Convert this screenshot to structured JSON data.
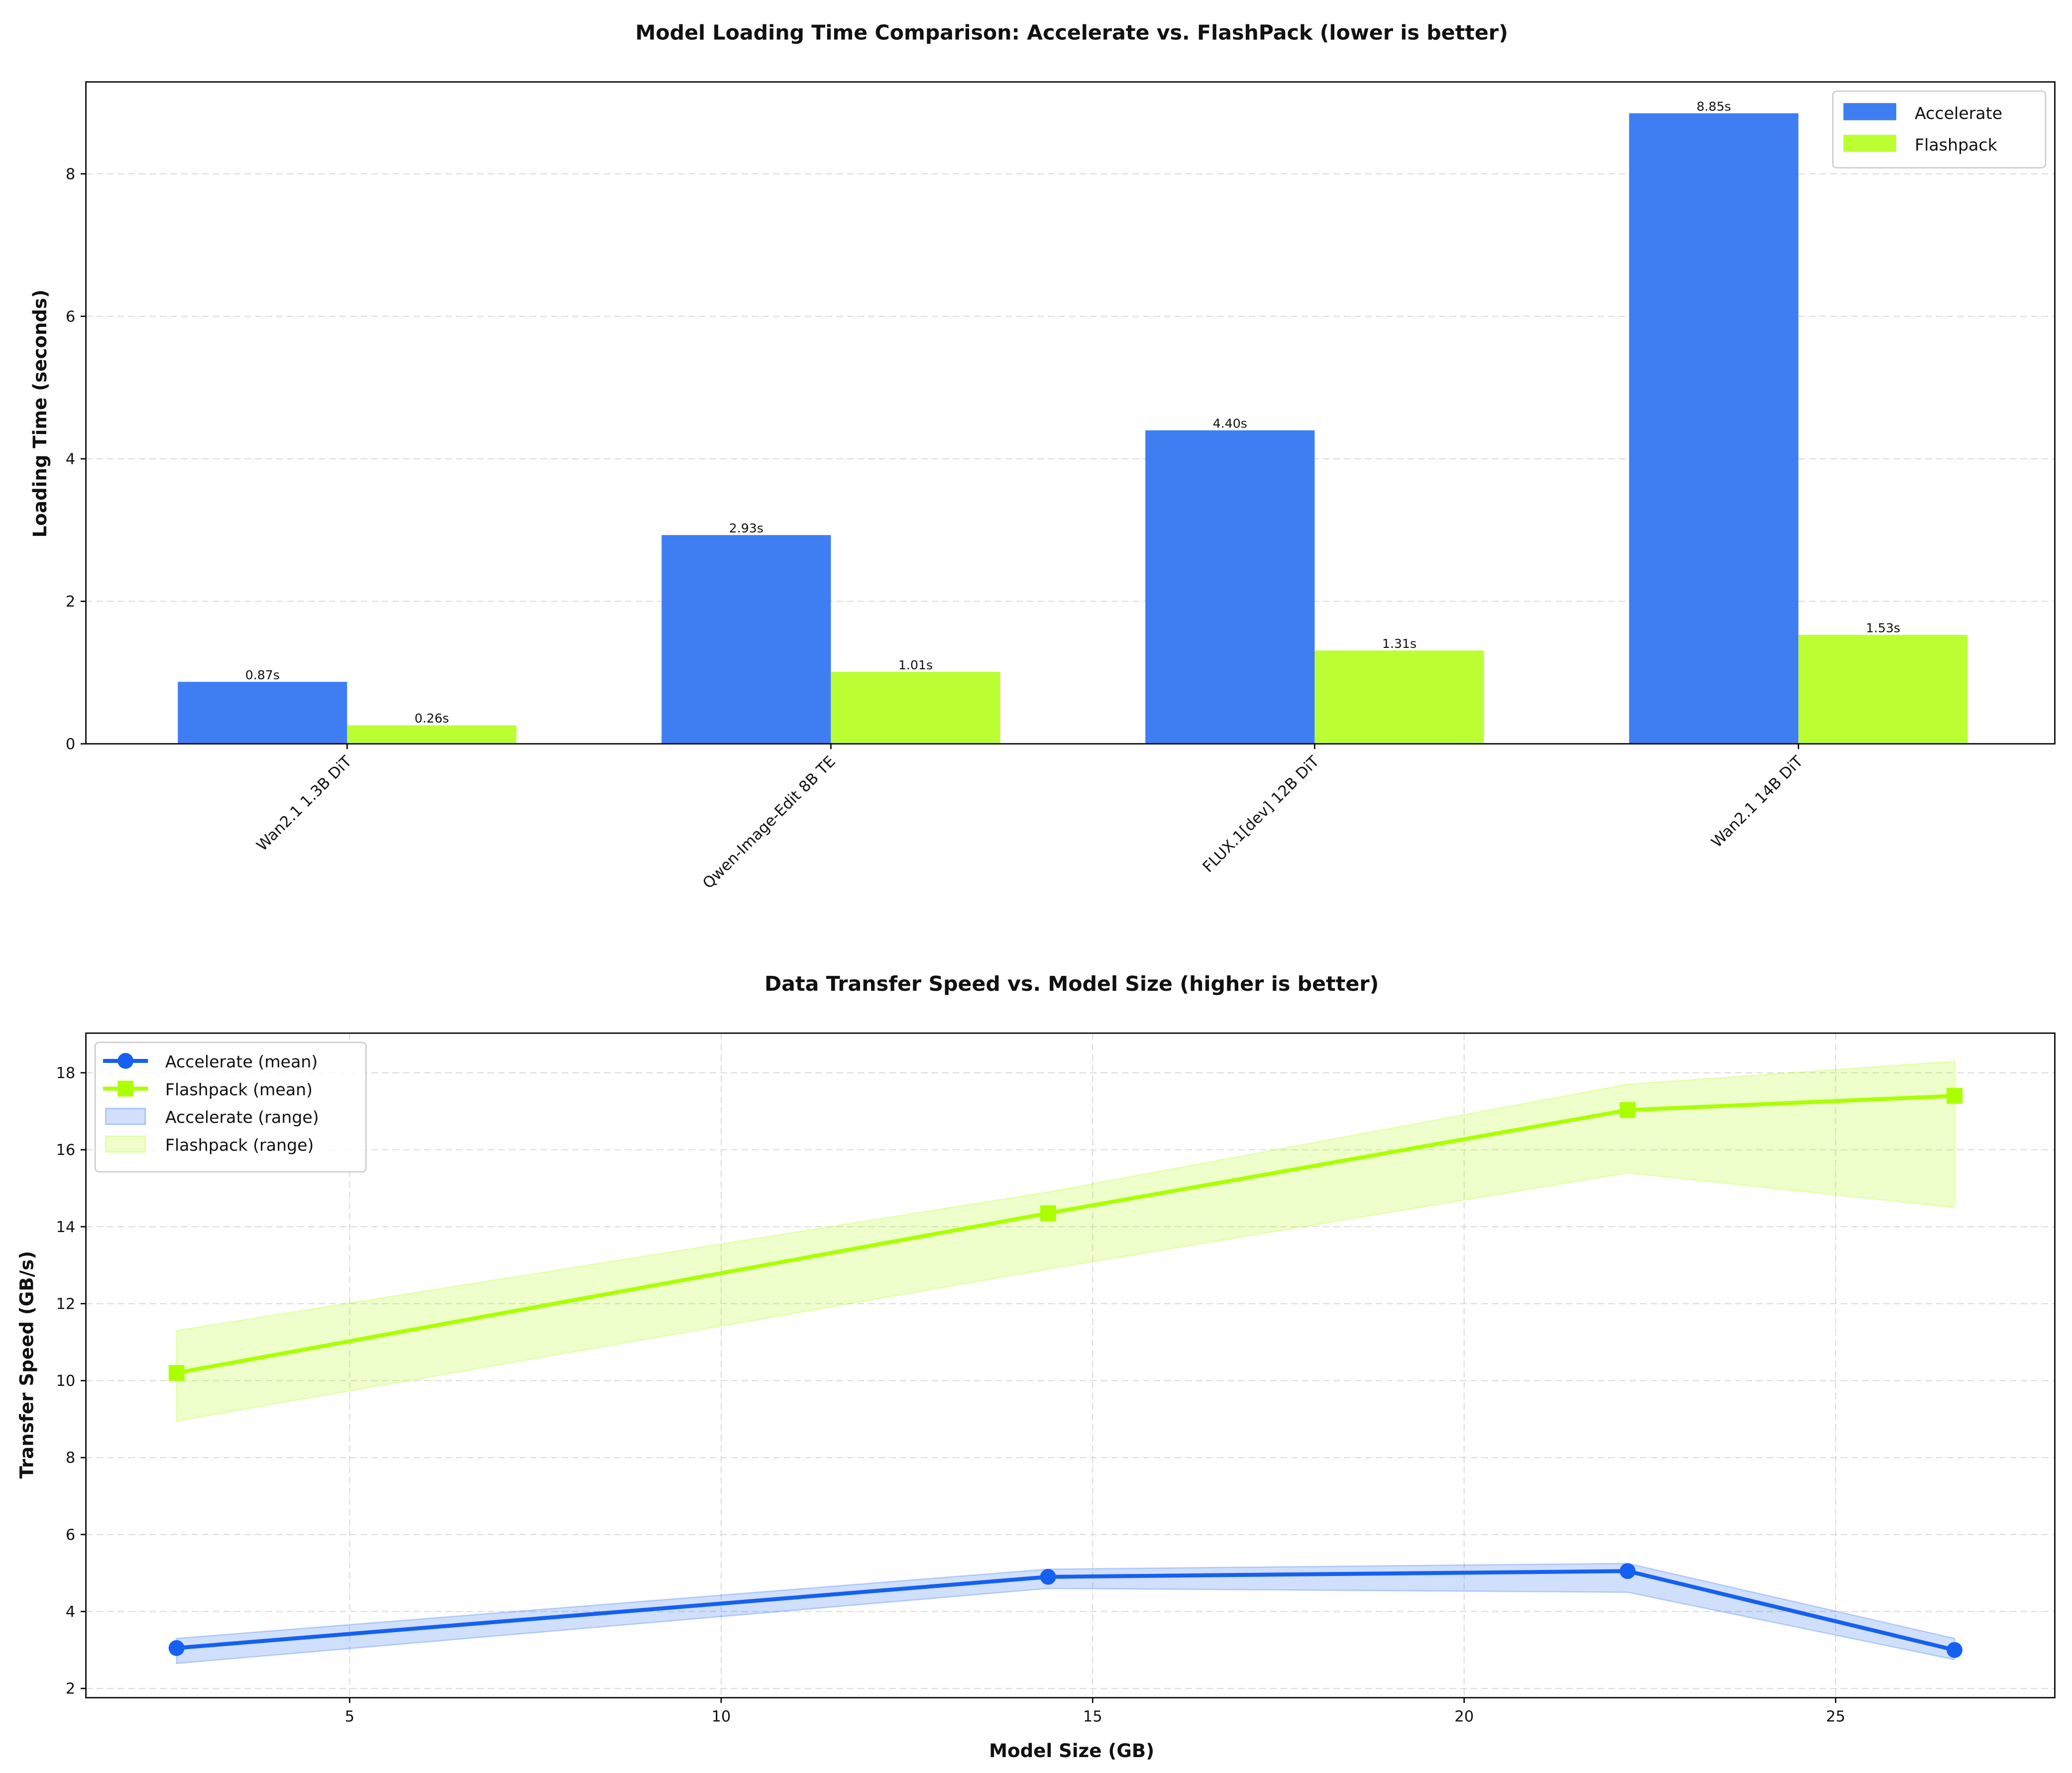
{
  "chart_data": [
    {
      "type": "bar",
      "title": "Model Loading Time Comparison: Accelerate vs. FlashPack (lower is better)",
      "xlabel": "",
      "ylabel": "Loading Time (seconds)",
      "categories": [
        "Wan2.1 1.3B DiT",
        "Qwen-Image-Edit 8B TE",
        "FLUX.1[dev] 12B DiT",
        "Wan2.1 14B DiT"
      ],
      "series": [
        {
          "name": "Accelerate",
          "color": "#3f7ef2",
          "values": [
            0.87,
            2.93,
            4.4,
            8.85
          ],
          "labels": [
            "0.87s",
            "2.93s",
            "4.40s",
            "8.85s"
          ]
        },
        {
          "name": "Flashpack",
          "color": "#bbff33",
          "values": [
            0.26,
            1.01,
            1.31,
            1.53
          ],
          "labels": [
            "0.26s",
            "1.01s",
            "1.31s",
            "1.53s"
          ]
        }
      ],
      "ylim": [
        0,
        9.29
      ],
      "yticks": [
        0,
        2,
        4,
        6,
        8
      ],
      "grid": "y",
      "legend": "top-right"
    },
    {
      "type": "line",
      "title": "Data Transfer Speed vs. Model Size (higher is better)",
      "xlabel": "Model Size (GB)",
      "ylabel": "Transfer Speed (GB/s)",
      "x": [
        2.67,
        14.4,
        22.2,
        26.6
      ],
      "series": [
        {
          "name": "Accelerate (mean)",
          "color": "#1560f0",
          "marker": "circle",
          "values": [
            3.05,
            4.9,
            5.05,
            3.0
          ]
        },
        {
          "name": "Flashpack (mean)",
          "color": "#aaff00",
          "marker": "square",
          "values": [
            10.2,
            14.35,
            17.03,
            17.4
          ]
        }
      ],
      "ranges": [
        {
          "name": "Accelerate (range)",
          "color": "#1560f0",
          "low": [
            2.65,
            4.6,
            4.5,
            2.75
          ],
          "high": [
            3.3,
            5.1,
            5.25,
            3.3
          ]
        },
        {
          "name": "Flashpack (range)",
          "color": "#aaff00",
          "low": [
            8.95,
            12.9,
            15.4,
            14.5
          ],
          "high": [
            11.3,
            14.9,
            17.7,
            18.3
          ]
        }
      ],
      "xlim": [
        1.45,
        27.95
      ],
      "ylim": [
        1.76,
        19.03
      ],
      "xticks": [
        5,
        10,
        15,
        20,
        25
      ],
      "yticks": [
        2,
        4,
        6,
        8,
        10,
        12,
        14,
        16,
        18
      ],
      "grid": "both",
      "legend": "top-left"
    }
  ]
}
